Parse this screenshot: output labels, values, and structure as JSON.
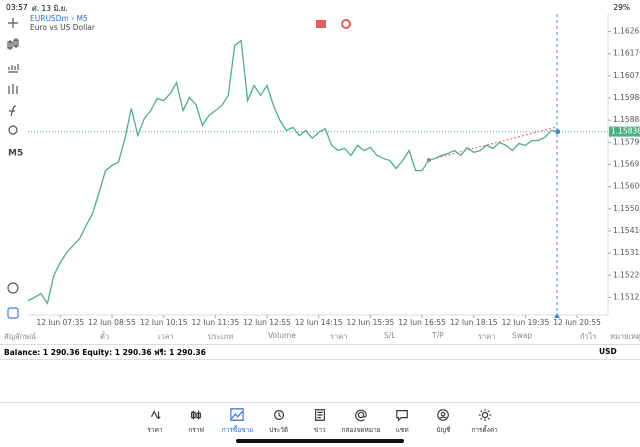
{
  "status_bar": {
    "time": "03:57",
    "date": "ศ. 13 มิ.ย.",
    "battery": "29%"
  },
  "chart_data": {
    "type": "line",
    "symbol": "EURUSDm › M5",
    "description": "Euro vs US Dollar",
    "timeframe": "M5",
    "color": "#4caf8a",
    "values": [
      1.15112,
      1.15125,
      1.15142,
      1.151,
      1.15219,
      1.15275,
      1.15318,
      1.15348,
      1.15378,
      1.15434,
      1.15485,
      1.15575,
      1.15669,
      1.15691,
      1.15704,
      1.15807,
      1.15935,
      1.15819,
      1.15892,
      1.15926,
      1.15978,
      1.15969,
      1.15999,
      1.16046,
      1.15926,
      1.15982,
      1.15952,
      1.15862,
      1.15905,
      1.15926,
      1.15948,
      1.15991,
      1.16205,
      1.16226,
      1.15969,
      1.16034,
      1.15991,
      1.16034,
      1.15948,
      1.15884,
      1.15841,
      1.15854,
      1.15819,
      1.15841,
      1.15807,
      1.15832,
      1.15849,
      1.15777,
      1.15755,
      1.15764,
      1.15734,
      1.15777,
      1.15755,
      1.15768,
      1.15734,
      1.15721,
      1.15712,
      1.15678,
      1.15712,
      1.15755,
      1.15669,
      1.15669,
      1.15712,
      1.15721,
      1.15734,
      1.15742,
      1.15755,
      1.15734,
      1.15768,
      1.15747,
      1.15755,
      1.15777,
      1.15764,
      1.15789,
      1.15777,
      1.15755,
      1.15785,
      1.15777,
      1.15798,
      1.15798,
      1.15811,
      1.15841,
      1.15836
    ],
    "current_price": {
      "value": 1.15836,
      "label": "1.15836"
    },
    "ylim": [
      1.1505,
      1.1634
    ],
    "yticks": [
      {
        "value": 1.16265,
        "label": "1.16265"
      },
      {
        "value": 1.1617,
        "label": "1.16170"
      },
      {
        "value": 1.16075,
        "label": "1.16075"
      },
      {
        "value": 1.1598,
        "label": "1.15980"
      },
      {
        "value": 1.15885,
        "label": "1.15885"
      },
      {
        "value": 1.1579,
        "label": "1.15790"
      },
      {
        "value": 1.15695,
        "label": "1.15695"
      },
      {
        "value": 1.156,
        "label": "1.15600"
      },
      {
        "value": 1.15505,
        "label": "1.15505"
      },
      {
        "value": 1.1541,
        "label": "1.15410"
      },
      {
        "value": 1.15315,
        "label": "1.15315"
      },
      {
        "value": 1.1522,
        "label": "1.15220"
      },
      {
        "value": 1.15125,
        "label": "1.15125"
      }
    ],
    "xlim": [
      0,
      90
    ],
    "xticks": [
      {
        "value": 5,
        "label": "12 Jun 07:35"
      },
      {
        "value": 13,
        "label": "12 Jun 08:55"
      },
      {
        "value": 21,
        "label": "12 Jun 10:15"
      },
      {
        "value": 29,
        "label": "12 Jun 11:35"
      },
      {
        "value": 37,
        "label": "12 Jun 12:55"
      },
      {
        "value": 45,
        "label": "12 Jun 14:15"
      },
      {
        "value": 53,
        "label": "12 Jun 15:35"
      },
      {
        "value": 61,
        "label": "12 Jun 16:55"
      },
      {
        "value": 69,
        "label": "12 Jun 18:15"
      },
      {
        "value": 77,
        "label": "12 Jun 19:35"
      },
      {
        "value": 85,
        "label": "12 Jun 20:55"
      }
    ]
  },
  "table": {
    "columns": [
      "สัญลักษณ์",
      "ตั๋ว",
      "เวลา",
      "ประเภท",
      "Volume",
      "ราคา",
      "S/L",
      "T/P",
      "ราคา",
      "Swap",
      "กำไร",
      "หมายเหตุ"
    ]
  },
  "balance": {
    "text": "Balance: 1 290.36 Equity: 1 290.36 ฟรี: 1 290.36",
    "currency": "USD"
  },
  "tabs": [
    "ราคา",
    "กราฟ",
    "การซื้อขาย",
    "ประวัติ",
    "ข่าว",
    "กล่องจดหมาย",
    "แชท",
    "บัญชี",
    "การตั้งค่า"
  ]
}
